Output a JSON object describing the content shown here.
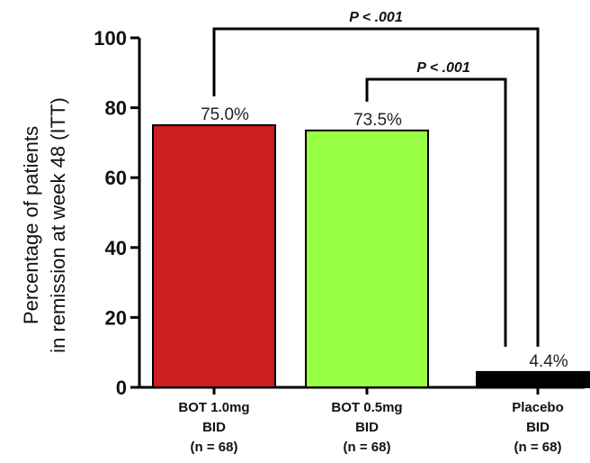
{
  "chart_data": {
    "type": "bar",
    "title": "",
    "xlabel": "",
    "ylabel": {
      "line1": "Percentage of patients",
      "line2": "in remission at week 48 (ITT)"
    },
    "ylim": [
      0,
      100
    ],
    "yticks": [
      0,
      20,
      40,
      60,
      80,
      100
    ],
    "grid": false,
    "categories": [
      {
        "line1": "BOT 1.0mg",
        "line2": "BID",
        "line3": "(n = 68)"
      },
      {
        "line1": "BOT 0.5mg",
        "line2": "BID",
        "line3": "(n = 68)"
      },
      {
        "line1": "Placebo",
        "line2": "BID",
        "line3": "(n = 68)"
      }
    ],
    "values": [
      75.0,
      73.5,
      4.4
    ],
    "value_labels": [
      "75.0%",
      "73.5%",
      "4.4%"
    ],
    "colors": [
      "#cc1f1f",
      "#99ff44",
      "#000000"
    ],
    "comparisons": [
      {
        "from": 0,
        "to": 2,
        "label": "P < .001"
      },
      {
        "from": 1,
        "to": 2,
        "label": "P < .001"
      }
    ]
  }
}
